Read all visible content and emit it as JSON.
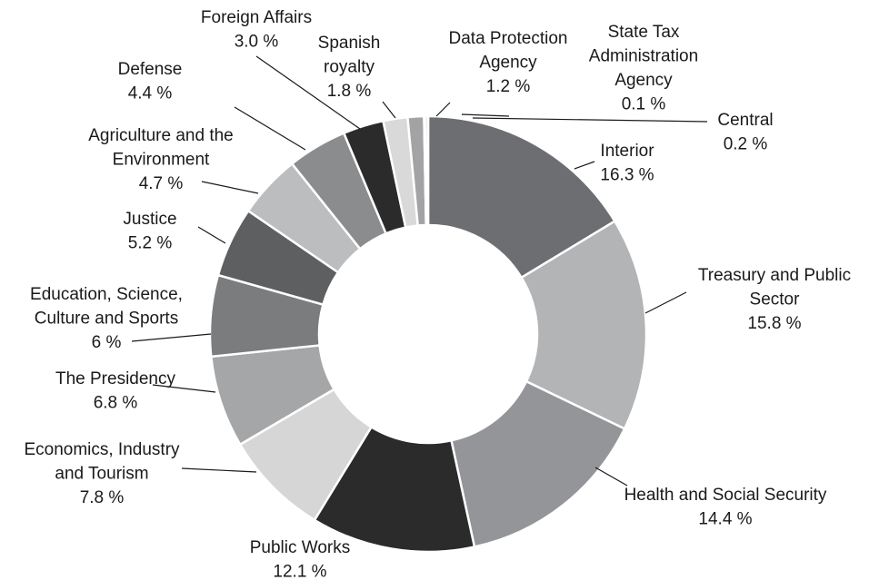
{
  "chart_data": {
    "type": "donut",
    "categories": [
      "Interior",
      "Treasury and Public Sector",
      "Health and Social Security",
      "Public Works",
      "Economics, Industry and Tourism",
      "The Presidency",
      "Education, Science, Culture and Sports",
      "Justice",
      "Agriculture and the Environment",
      "Defense",
      "Foreign Affairs",
      "Spanish royalty",
      "Data Protection Agency",
      "State Tax Administration Agency",
      "Central"
    ],
    "values": [
      16.3,
      15.8,
      14.4,
      12.1,
      7.8,
      6.8,
      6,
      5.2,
      4.7,
      4.4,
      3.0,
      1.8,
      1.2,
      0.1,
      0.2
    ],
    "value_labels": [
      "16.3 %",
      "15.8 %",
      "14.4 %",
      "12.1 %",
      "7.8 %",
      "6.8 %",
      "6 %",
      "5.2 %",
      "4.7 %",
      "4.4 %",
      "3.0 %",
      "1.8 %",
      "1.2 %",
      "0.1 %",
      "0.2 %"
    ],
    "colors": [
      "#6d6e71",
      "#b3b4b6",
      "#939598",
      "#2b2b2b",
      "#d6d6d6",
      "#a5a6a8",
      "#7b7c7e",
      "#5e5f61",
      "#bcbdbf",
      "#8b8c8e",
      "#2b2b2b",
      "#d9d9d9",
      "#a3a3a5",
      "#666666",
      "#cccccc"
    ]
  }
}
